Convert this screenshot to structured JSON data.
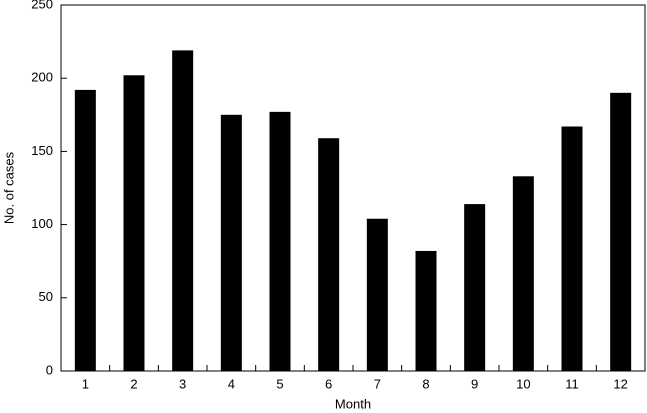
{
  "chart_data": {
    "type": "bar",
    "x_label": "Month",
    "y_label": "No. of cases",
    "categories": [
      "1",
      "2",
      "3",
      "4",
      "5",
      "6",
      "7",
      "8",
      "9",
      "10",
      "11",
      "12"
    ],
    "values": [
      192,
      202,
      219,
      175,
      177,
      159,
      104,
      82,
      114,
      133,
      167,
      190
    ],
    "color": "#000000",
    "ylim": [
      0,
      250
    ],
    "yticks": [
      0,
      50,
      100,
      150,
      200,
      250
    ],
    "grid": false
  }
}
